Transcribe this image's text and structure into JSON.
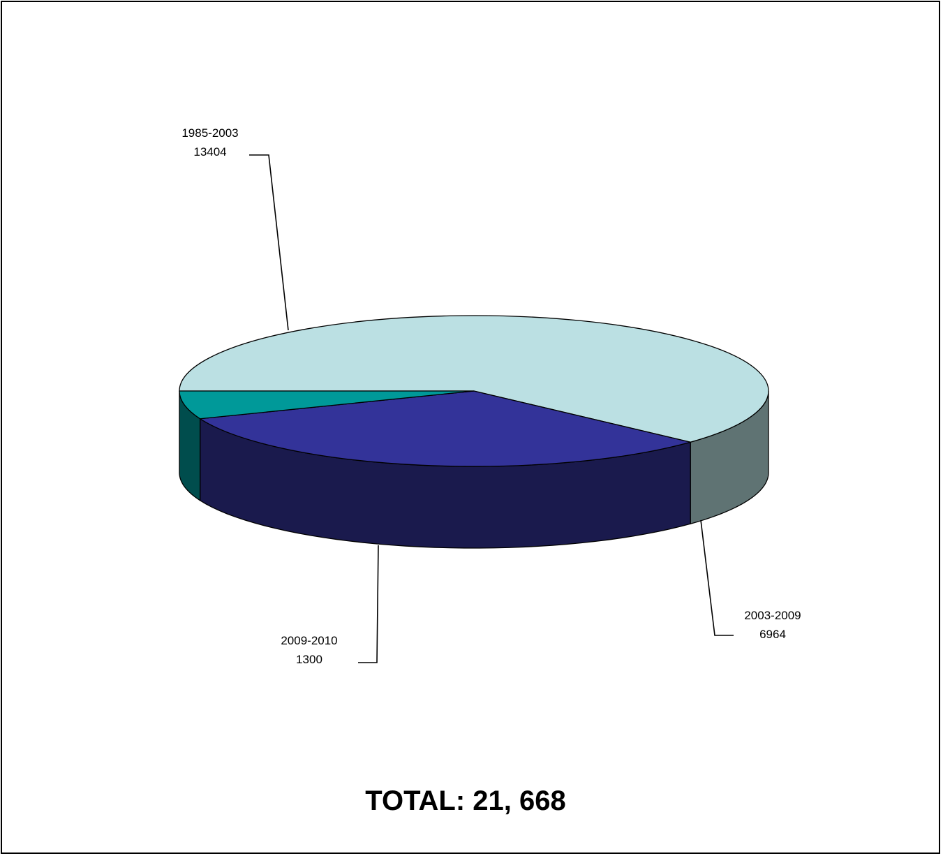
{
  "chart_data": {
    "type": "pie",
    "style": "3d",
    "slices": [
      {
        "label": "1985-2003",
        "value": 13404,
        "top_color": "#BBE0E3",
        "side_color": "#5F7373"
      },
      {
        "label": "2003-2009",
        "value": 6964,
        "top_color": "#333399",
        "side_color": "#1A1A4D"
      },
      {
        "label": "2009-2010",
        "value": 1300,
        "top_color": "#009999",
        "side_color": "#004D4D"
      }
    ],
    "total_text": "TOTAL: 21, 668",
    "legend": "none"
  }
}
